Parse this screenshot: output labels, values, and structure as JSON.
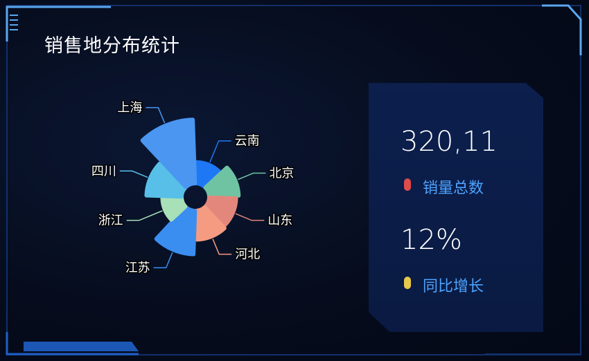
{
  "title": "销售地分布统计",
  "stats": {
    "total_value": "320,11",
    "total_label": "销量总数",
    "total_color": "#e04b4b",
    "growth_value": "12%",
    "growth_label": "同比增长",
    "growth_color": "#e8c84a"
  },
  "chart_data": {
    "type": "pie",
    "rose": true,
    "start_angle_deg": 90,
    "categories": [
      "云南",
      "北京",
      "山东",
      "河北",
      "江苏",
      "浙江",
      "四川",
      "上海"
    ],
    "values": [
      33,
      46,
      42,
      45,
      68,
      30,
      55,
      100
    ],
    "colors": [
      "#1e78f5",
      "#6fc3a3",
      "#e3877c",
      "#f49b82",
      "#3a8ef0",
      "#a8e0b8",
      "#58c0e8",
      "#4a96f0"
    ],
    "legend": "none",
    "labels_outside": true
  }
}
